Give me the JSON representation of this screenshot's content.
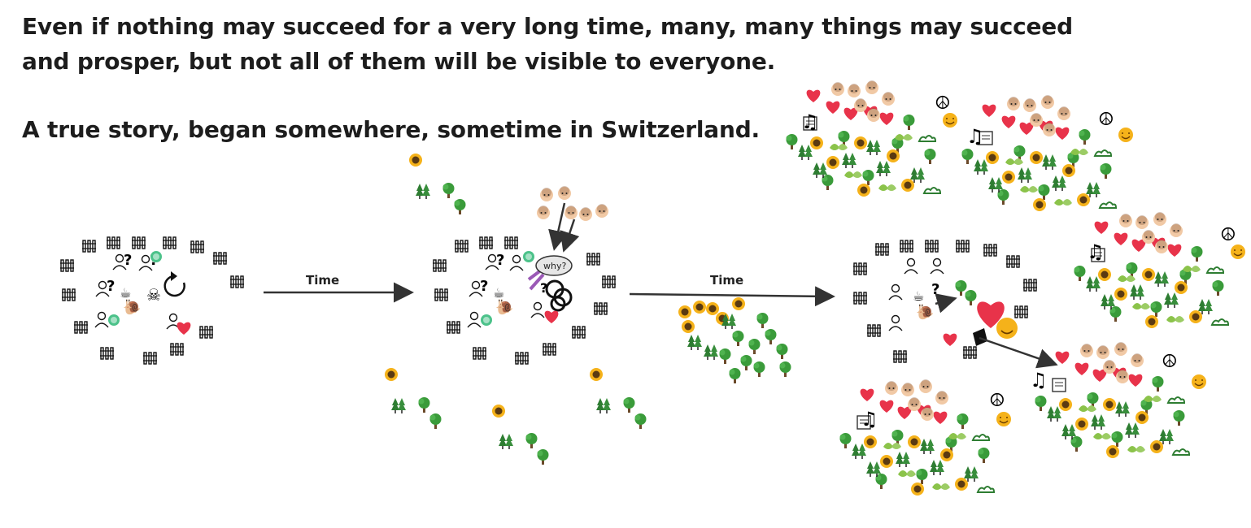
{
  "headline": {
    "line1": "Even if nothing may succeed for a very long time, many, many things may succeed",
    "line2": "and prosper, but not all of them will be visible to everyone.",
    "line3": "A true story, began somewhere, sometime in Switzerland."
  },
  "arrows": {
    "first_label": "Time",
    "second_label": "Time"
  },
  "bubble": {
    "text": "why?"
  },
  "colors": {
    "text": "#1d1d1d",
    "arrow": "#333333",
    "tree_green": "#3a9b3a",
    "heart_red": "#e8334a",
    "sunflower": "#f5b21a",
    "chat_green": "#4cc28a"
  },
  "icons": {
    "fence": "fence-icon",
    "person": "person-icon",
    "question": "question-mark-icon",
    "tree": "tree-icon",
    "forest": "forest-icon",
    "sunflower": "sunflower-icon",
    "heart": "heart-icon",
    "peace": "peace-icon",
    "music": "music-note-icon",
    "sun_face": "smiling-sun-icon",
    "faces": "face-avatar-icon"
  }
}
